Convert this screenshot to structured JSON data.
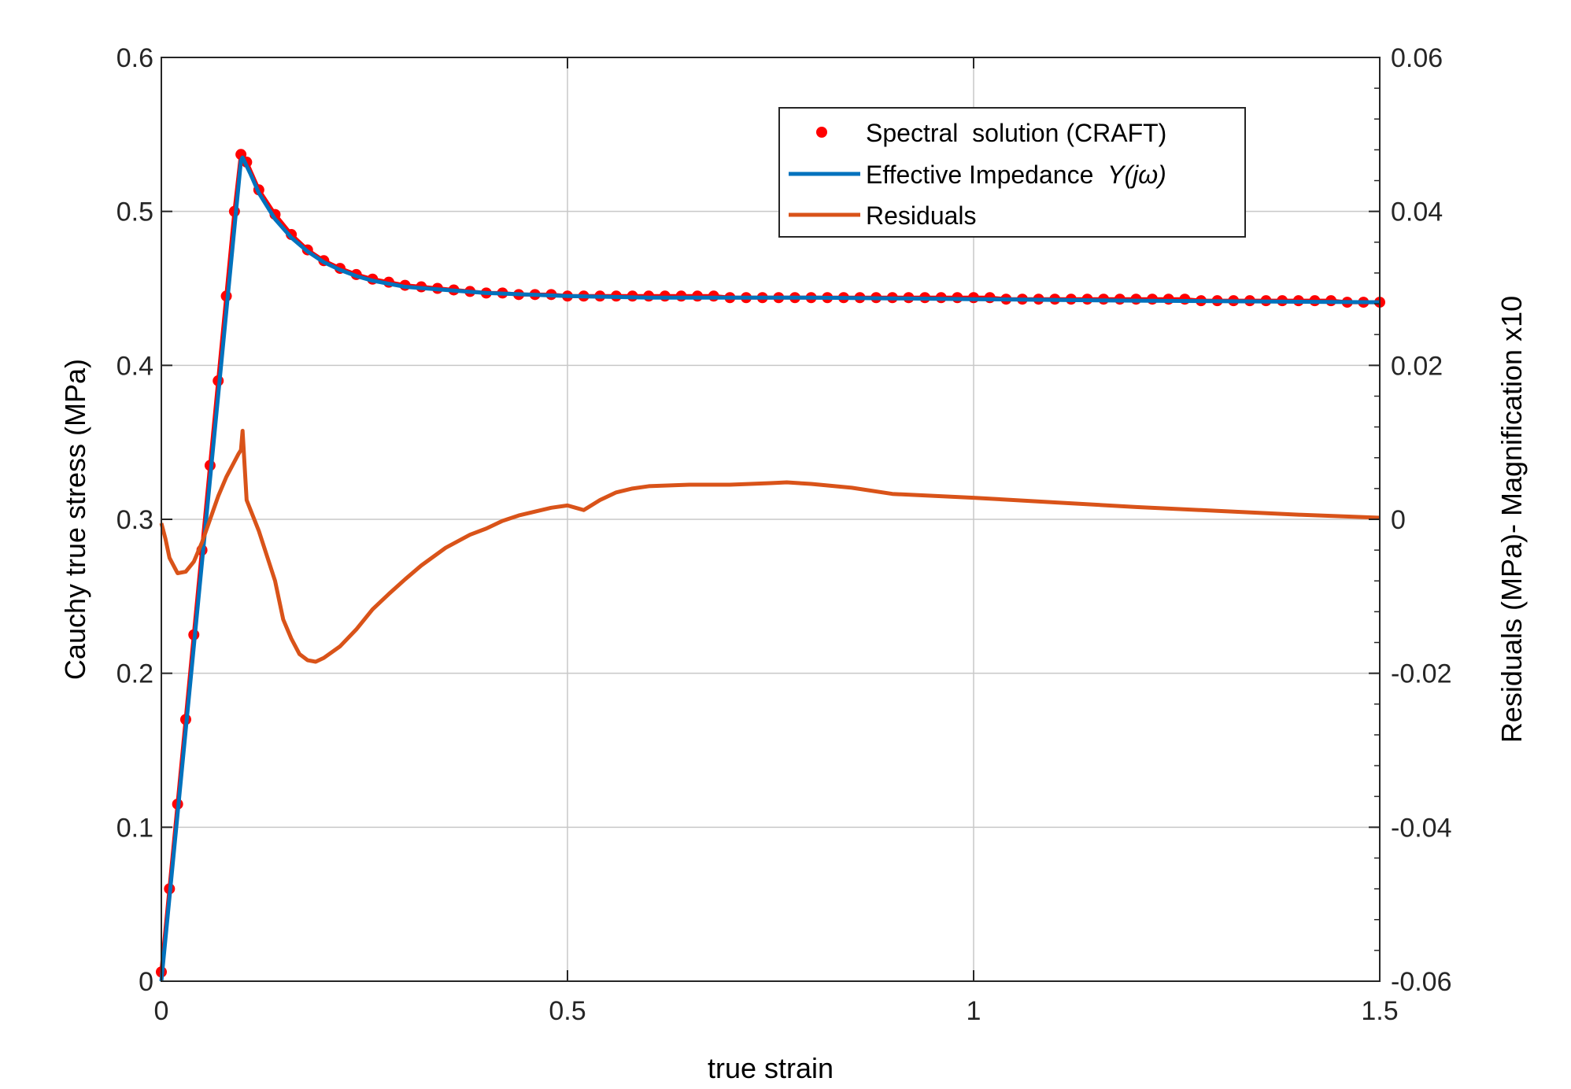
{
  "chart_data": {
    "type": "line",
    "title": "",
    "xlabel": "true strain",
    "ylabel": "Cauchy true stress (MPa)",
    "ylabel_right": "Residuals (MPa)- Magnification x10",
    "xlim": [
      0,
      1.5
    ],
    "ylim": [
      0,
      0.6
    ],
    "ylim_right": [
      -0.06,
      0.06
    ],
    "x_ticks": [
      "0",
      "0.5",
      "1",
      "1.5"
    ],
    "y_ticks": [
      "0",
      "0.1",
      "0.2",
      "0.3",
      "0.4",
      "0.5",
      "0.6"
    ],
    "y_right_ticks": [
      "-0.06",
      "-0.04",
      "-0.02",
      "0",
      "0.02",
      "0.04",
      "0.06"
    ],
    "grid": true,
    "legend_position": "top-right",
    "legend": [
      {
        "name": "Spectral  solution (CRAFT)",
        "name_suffix": ""
      },
      {
        "name": "Effective Impedance  ",
        "name_suffix": "Y(jω)"
      },
      {
        "name": "Residuals",
        "name_suffix": ""
      }
    ],
    "series": [
      {
        "name": "Spectral  solution (CRAFT)",
        "style": "markers",
        "color": "#ff0000",
        "axis": "left",
        "x": [
          0,
          0.01,
          0.02,
          0.03,
          0.04,
          0.05,
          0.06,
          0.07,
          0.08,
          0.09,
          0.098,
          0.105,
          0.12,
          0.14,
          0.16,
          0.18,
          0.2,
          0.22,
          0.24,
          0.26,
          0.28,
          0.3,
          0.32,
          0.34,
          0.36,
          0.38,
          0.4,
          0.42,
          0.44,
          0.46,
          0.48,
          0.5,
          0.52,
          0.54,
          0.56,
          0.58,
          0.6,
          0.62,
          0.64,
          0.66,
          0.68,
          0.7,
          0.72,
          0.74,
          0.76,
          0.78,
          0.8,
          0.82,
          0.84,
          0.86,
          0.88,
          0.9,
          0.92,
          0.94,
          0.96,
          0.98,
          1.0,
          1.02,
          1.04,
          1.06,
          1.08,
          1.1,
          1.12,
          1.14,
          1.16,
          1.18,
          1.2,
          1.22,
          1.24,
          1.26,
          1.28,
          1.3,
          1.32,
          1.34,
          1.36,
          1.38,
          1.4,
          1.42,
          1.44,
          1.46,
          1.48,
          1.5
        ],
        "y": [
          0.006,
          0.06,
          0.115,
          0.17,
          0.225,
          0.28,
          0.335,
          0.39,
          0.445,
          0.5,
          0.537,
          0.532,
          0.514,
          0.498,
          0.485,
          0.475,
          0.468,
          0.463,
          0.459,
          0.456,
          0.454,
          0.452,
          0.451,
          0.45,
          0.449,
          0.448,
          0.447,
          0.447,
          0.446,
          0.446,
          0.446,
          0.445,
          0.445,
          0.445,
          0.445,
          0.445,
          0.445,
          0.445,
          0.445,
          0.445,
          0.445,
          0.444,
          0.444,
          0.444,
          0.444,
          0.444,
          0.444,
          0.444,
          0.444,
          0.444,
          0.444,
          0.444,
          0.444,
          0.444,
          0.444,
          0.444,
          0.444,
          0.444,
          0.443,
          0.443,
          0.443,
          0.443,
          0.443,
          0.443,
          0.443,
          0.443,
          0.443,
          0.443,
          0.443,
          0.443,
          0.442,
          0.442,
          0.442,
          0.442,
          0.442,
          0.442,
          0.442,
          0.442,
          0.442,
          0.441,
          0.441,
          0.441
        ]
      },
      {
        "name": "Effective Impedance  Y(jω)",
        "style": "line",
        "color": "#0072bd",
        "axis": "left",
        "x": [
          0,
          0.098,
          0.1,
          0.11,
          0.12,
          0.14,
          0.16,
          0.18,
          0.2,
          0.22,
          0.24,
          0.26,
          0.28,
          0.3,
          0.35,
          0.4,
          0.5,
          0.6,
          0.8,
          1.0,
          1.2,
          1.5
        ],
        "y": [
          0.0,
          0.533,
          0.535,
          0.524,
          0.512,
          0.495,
          0.483,
          0.474,
          0.467,
          0.462,
          0.458,
          0.455,
          0.453,
          0.451,
          0.449,
          0.447,
          0.445,
          0.444,
          0.444,
          0.443,
          0.442,
          0.441
        ]
      },
      {
        "name": "Residuals",
        "style": "line",
        "color": "#d95319",
        "axis": "right",
        "x": [
          0,
          0.005,
          0.01,
          0.02,
          0.03,
          0.04,
          0.05,
          0.06,
          0.07,
          0.08,
          0.09,
          0.095,
          0.098,
          0.1,
          0.105,
          0.12,
          0.14,
          0.15,
          0.16,
          0.17,
          0.18,
          0.19,
          0.2,
          0.22,
          0.24,
          0.26,
          0.28,
          0.3,
          0.32,
          0.35,
          0.38,
          0.4,
          0.42,
          0.44,
          0.46,
          0.48,
          0.5,
          0.51,
          0.52,
          0.54,
          0.56,
          0.58,
          0.6,
          0.65,
          0.7,
          0.75,
          0.77,
          0.8,
          0.85,
          0.9,
          1.0,
          1.1,
          1.2,
          1.3,
          1.4,
          1.5
        ],
        "y": [
          -0.0005,
          -0.0025,
          -0.005,
          -0.007,
          -0.0068,
          -0.0055,
          -0.003,
          0.0,
          0.003,
          0.0055,
          0.0075,
          0.0085,
          0.009,
          0.0115,
          0.0025,
          -0.0015,
          -0.008,
          -0.013,
          -0.0155,
          -0.0175,
          -0.0183,
          -0.0185,
          -0.018,
          -0.0165,
          -0.0143,
          -0.0117,
          -0.0097,
          -0.0078,
          -0.006,
          -0.0037,
          -0.002,
          -0.0012,
          -0.0002,
          0.0005,
          0.001,
          0.0015,
          0.0018,
          0.0015,
          0.0012,
          0.0025,
          0.0035,
          0.004,
          0.0043,
          0.0045,
          0.0045,
          0.0047,
          0.0048,
          0.0046,
          0.0041,
          0.0033,
          0.0028,
          0.0022,
          0.0016,
          0.0011,
          0.0006,
          0.0002
        ]
      }
    ]
  }
}
